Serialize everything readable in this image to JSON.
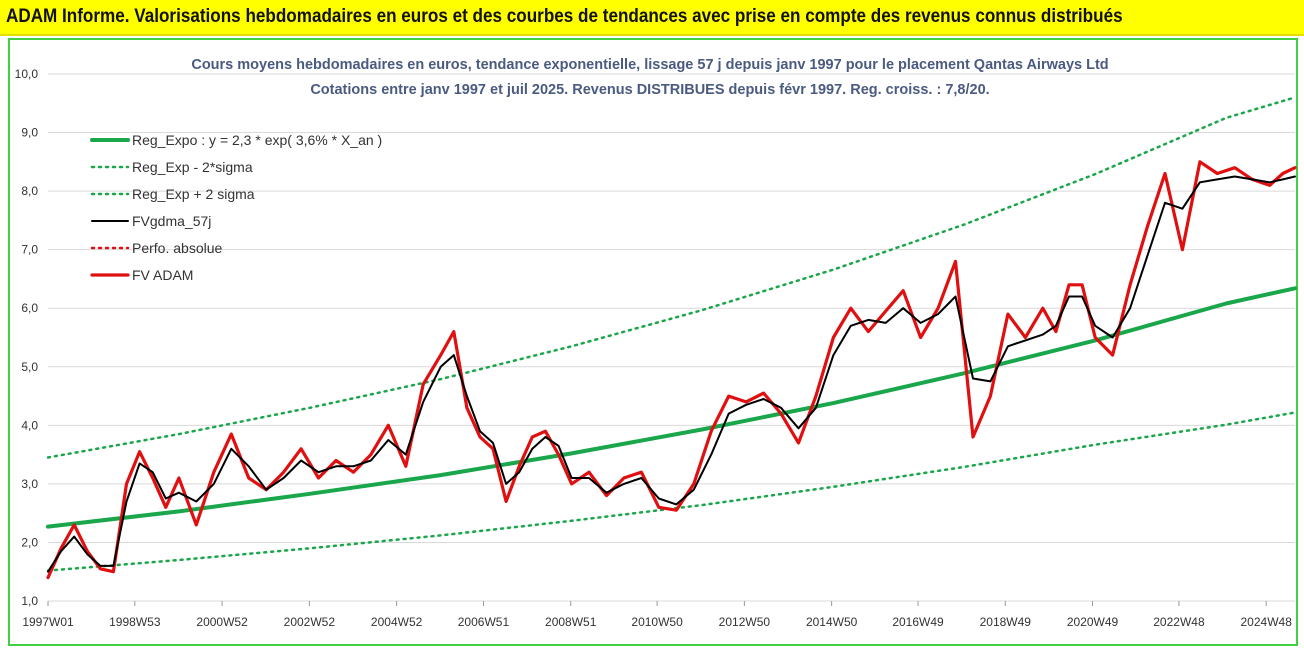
{
  "banner": {
    "title": "ADAM Informe. Valorisations hebdomadaires en euros et des courbes de tendances avec prise en compte des revenus connus distribués"
  },
  "chart_data": {
    "type": "line",
    "title": [
      "Cours moyens hebdomadaires en euros, tendance exponentielle, lissage 57 j depuis janv 1997 pour le placement Qantas Airways Ltd",
      "Cotations entre janv 1997 et juil 2025. Revenus DISTRIBUES depuis févr 1997. Reg. croiss. : 7,8/20."
    ],
    "xlabel": "",
    "ylabel": "",
    "ylim": [
      1.0,
      10.0
    ],
    "xlim": [
      1997.0,
      2025.58
    ],
    "yticks": [
      "1,0",
      "2,0",
      "3,0",
      "4,0",
      "5,0",
      "6,0",
      "7,0",
      "8,0",
      "9,0",
      "10,0"
    ],
    "xticks": [
      {
        "x": 1997.0,
        "label": "1997W01"
      },
      {
        "x": 1998.99,
        "label": "1998W53"
      },
      {
        "x": 2000.99,
        "label": "2000W52"
      },
      {
        "x": 2002.99,
        "label": "2002W52"
      },
      {
        "x": 2004.99,
        "label": "2004W52"
      },
      {
        "x": 2006.98,
        "label": "2006W51"
      },
      {
        "x": 2008.98,
        "label": "2008W51"
      },
      {
        "x": 2010.96,
        "label": "2010W50"
      },
      {
        "x": 2012.96,
        "label": "2012W50"
      },
      {
        "x": 2014.96,
        "label": "2014W50"
      },
      {
        "x": 2016.94,
        "label": "2016W49"
      },
      {
        "x": 2018.94,
        "label": "2018W49"
      },
      {
        "x": 2020.94,
        "label": "2020W49"
      },
      {
        "x": 2022.92,
        "label": "2022W48"
      },
      {
        "x": 2024.92,
        "label": "2024W48"
      }
    ],
    "grid": true,
    "legend_position": "top-left",
    "series": [
      {
        "name": "Reg_Expo : y = 2,3 * exp( 3,6% *  X_an )",
        "color": "#1aa64a",
        "style": "solid",
        "width": 4,
        "x": [
          1997.0,
          2000.0,
          2003.0,
          2006.0,
          2009.0,
          2012.0,
          2015.0,
          2018.0,
          2021.0,
          2024.0,
          2025.58
        ],
        "values": [
          2.27,
          2.53,
          2.83,
          3.15,
          3.52,
          3.93,
          4.38,
          4.89,
          5.45,
          6.08,
          6.34
        ]
      },
      {
        "name": "Reg_Exp - 2*sigma",
        "color": "#1aa64a",
        "style": "dotted",
        "width": 2.5,
        "x": [
          1997.0,
          2000.0,
          2003.0,
          2006.0,
          2009.0,
          2012.0,
          2015.0,
          2018.0,
          2021.0,
          2024.0,
          2025.58
        ],
        "values": [
          1.52,
          1.7,
          1.9,
          2.12,
          2.37,
          2.64,
          2.95,
          3.29,
          3.67,
          4.01,
          4.22
        ]
      },
      {
        "name": "Reg_Exp + 2 sigma",
        "color": "#1aa64a",
        "style": "dotted",
        "width": 2.5,
        "x": [
          1997.0,
          2000.0,
          2003.0,
          2006.0,
          2009.0,
          2012.0,
          2015.0,
          2018.0,
          2021.0,
          2024.0,
          2025.58
        ],
        "values": [
          3.45,
          3.85,
          4.3,
          4.79,
          5.35,
          5.97,
          6.66,
          7.43,
          8.29,
          9.25,
          9.6
        ]
      },
      {
        "name": "FVgdma_57j",
        "color": "#000000",
        "style": "solid",
        "width": 2,
        "x": [
          1997.0,
          1997.3,
          1997.6,
          1997.9,
          1998.2,
          1998.5,
          1998.8,
          1999.1,
          1999.4,
          1999.7,
          2000.0,
          2000.4,
          2000.8,
          2001.2,
          2001.6,
          2002.0,
          2002.4,
          2002.8,
          2003.2,
          2003.6,
          2004.0,
          2004.4,
          2004.8,
          2005.2,
          2005.6,
          2006.0,
          2006.3,
          2006.6,
          2006.9,
          2007.2,
          2007.5,
          2007.8,
          2008.1,
          2008.4,
          2008.7,
          2009.0,
          2009.4,
          2009.8,
          2010.2,
          2010.6,
          2011.0,
          2011.4,
          2011.8,
          2012.2,
          2012.6,
          2013.0,
          2013.4,
          2013.8,
          2014.2,
          2014.6,
          2015.0,
          2015.4,
          2015.8,
          2016.2,
          2016.6,
          2017.0,
          2017.4,
          2017.8,
          2018.2,
          2018.6,
          2019.0,
          2019.4,
          2019.8,
          2020.1,
          2020.4,
          2020.7,
          2021.0,
          2021.4,
          2021.8,
          2022.2,
          2022.6,
          2023.0,
          2023.4,
          2023.8,
          2024.2,
          2024.6,
          2025.0,
          2025.3,
          2025.58
        ],
        "values": [
          1.5,
          1.85,
          2.1,
          1.8,
          1.6,
          1.6,
          2.7,
          3.35,
          3.2,
          2.75,
          2.85,
          2.7,
          3.0,
          3.6,
          3.3,
          2.9,
          3.1,
          3.4,
          3.2,
          3.3,
          3.3,
          3.4,
          3.75,
          3.5,
          4.4,
          5.0,
          5.2,
          4.5,
          3.9,
          3.7,
          3.0,
          3.2,
          3.6,
          3.8,
          3.65,
          3.1,
          3.1,
          2.85,
          3.0,
          3.1,
          2.75,
          2.65,
          2.9,
          3.5,
          4.2,
          4.35,
          4.45,
          4.3,
          3.95,
          4.3,
          5.2,
          5.7,
          5.8,
          5.75,
          6.0,
          5.75,
          5.9,
          6.2,
          4.8,
          4.75,
          5.35,
          5.45,
          5.55,
          5.7,
          6.2,
          6.2,
          5.7,
          5.5,
          6.0,
          6.9,
          7.8,
          7.7,
          8.15,
          8.2,
          8.25,
          8.2,
          8.15,
          8.2,
          8.25
        ]
      },
      {
        "name": "Perfo. absolue",
        "color": "#e01010",
        "style": "dotted",
        "width": 2,
        "x": [],
        "values": []
      },
      {
        "name": "FV ADAM",
        "color": "#e01010",
        "style": "solid",
        "width": 3.2,
        "x": [
          1997.0,
          1997.3,
          1997.6,
          1997.9,
          1998.2,
          1998.5,
          1998.8,
          1999.1,
          1999.4,
          1999.7,
          2000.0,
          2000.4,
          2000.8,
          2001.2,
          2001.6,
          2002.0,
          2002.4,
          2002.8,
          2003.2,
          2003.6,
          2004.0,
          2004.4,
          2004.8,
          2005.2,
          2005.6,
          2006.0,
          2006.3,
          2006.6,
          2006.9,
          2007.2,
          2007.5,
          2007.8,
          2008.1,
          2008.4,
          2008.7,
          2009.0,
          2009.4,
          2009.8,
          2010.2,
          2010.6,
          2011.0,
          2011.4,
          2011.8,
          2012.2,
          2012.6,
          2013.0,
          2013.4,
          2013.8,
          2014.2,
          2014.6,
          2015.0,
          2015.4,
          2015.8,
          2016.2,
          2016.6,
          2017.0,
          2017.4,
          2017.8,
          2018.2,
          2018.6,
          2019.0,
          2019.4,
          2019.8,
          2020.1,
          2020.4,
          2020.7,
          2021.0,
          2021.4,
          2021.8,
          2022.2,
          2022.6,
          2023.0,
          2023.4,
          2023.8,
          2024.2,
          2024.6,
          2025.0,
          2025.3,
          2025.58
        ],
        "values": [
          1.4,
          1.9,
          2.3,
          1.85,
          1.55,
          1.5,
          3.0,
          3.55,
          3.1,
          2.6,
          3.1,
          2.3,
          3.2,
          3.85,
          3.1,
          2.9,
          3.2,
          3.6,
          3.1,
          3.4,
          3.2,
          3.5,
          4.0,
          3.3,
          4.7,
          5.2,
          5.6,
          4.3,
          3.8,
          3.6,
          2.7,
          3.3,
          3.8,
          3.9,
          3.5,
          3.0,
          3.2,
          2.8,
          3.1,
          3.2,
          2.6,
          2.55,
          3.0,
          3.9,
          4.5,
          4.4,
          4.55,
          4.2,
          3.7,
          4.5,
          5.5,
          6.0,
          5.6,
          5.95,
          6.3,
          5.5,
          6.0,
          6.8,
          3.8,
          4.5,
          5.9,
          5.5,
          6.0,
          5.6,
          6.4,
          6.4,
          5.5,
          5.2,
          6.4,
          7.4,
          8.3,
          7.0,
          8.5,
          8.3,
          8.4,
          8.2,
          8.1,
          8.3,
          8.4
        ]
      }
    ]
  }
}
